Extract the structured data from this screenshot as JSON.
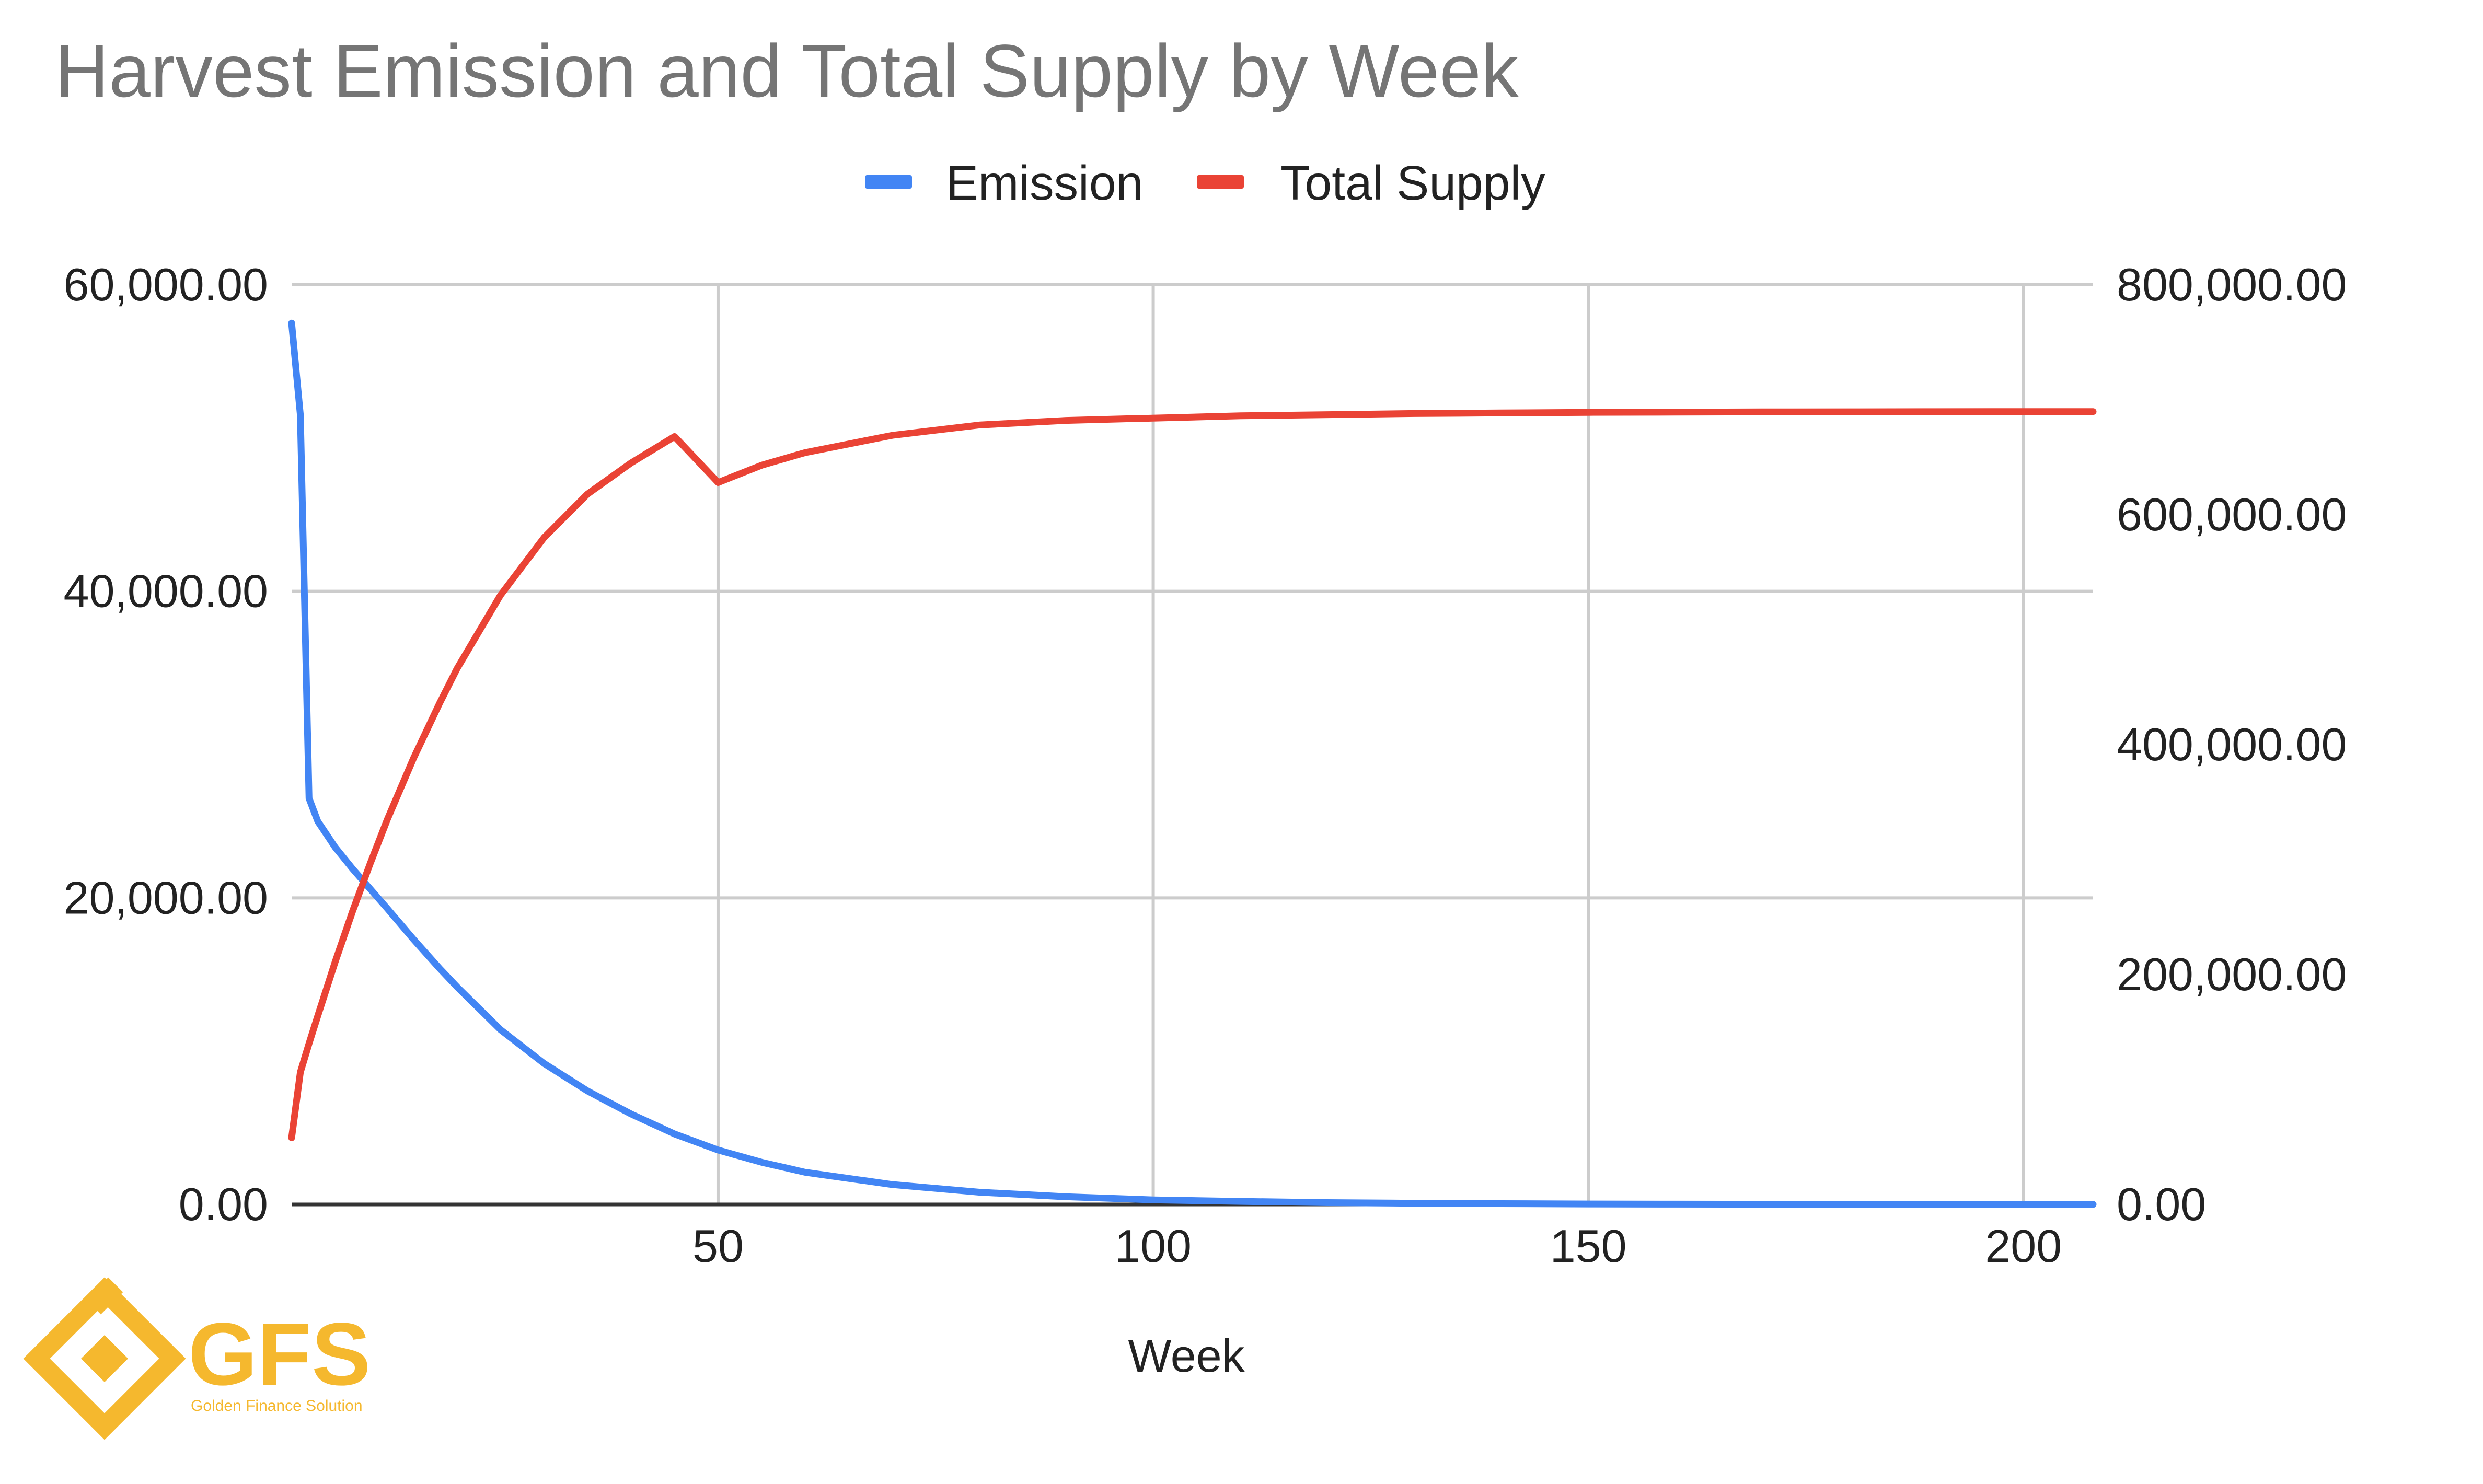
{
  "chart_data": {
    "type": "line",
    "title": "Harvest Emission and Total Supply by Week",
    "xlabel": "Week",
    "x_ticks": [
      "50",
      "100",
      "150",
      "200"
    ],
    "xlim": [
      1,
      208
    ],
    "y_left": {
      "ylim": [
        0,
        60000
      ],
      "ticks": [
        "0.00",
        "20,000.00",
        "40,000.00",
        "60,000.00"
      ]
    },
    "y_right": {
      "ylim": [
        0,
        800000
      ],
      "ticks": [
        "0.00",
        "200,000.00",
        "400,000.00",
        "600,000.00",
        "800,000.00"
      ]
    },
    "legend_position": "top",
    "grid": true,
    "series": [
      {
        "name": "Emission",
        "axis": "left",
        "color": "#4285f4",
        "x": [
          1,
          2,
          3,
          4,
          6,
          8,
          10,
          12,
          15,
          18,
          20,
          25,
          30,
          35,
          40,
          45,
          50,
          55,
          60,
          70,
          80,
          90,
          100,
          110,
          120,
          130,
          140,
          150,
          160,
          170,
          180,
          190,
          200,
          208
        ],
        "y": [
          57500,
          51500,
          26500,
          25000,
          23300,
          21900,
          20600,
          19300,
          17300,
          15400,
          14200,
          11400,
          9200,
          7400,
          5900,
          4600,
          3550,
          2750,
          2100,
          1300,
          800,
          500,
          300,
          200,
          120,
          80,
          50,
          30,
          20,
          12,
          8,
          5,
          3,
          2
        ]
      },
      {
        "name": "Total Supply",
        "axis": "right",
        "color": "#ea4335",
        "x": [
          1,
          2,
          3,
          4,
          6,
          8,
          10,
          12,
          15,
          18,
          20,
          25,
          30,
          35,
          40,
          45,
          50,
          55,
          60,
          70,
          80,
          90,
          100,
          110,
          120,
          130,
          140,
          150,
          160,
          170,
          180,
          190,
          200,
          208
        ],
        "y": [
          58000,
          115000,
          140000,
          164000,
          211000,
          255000,
          296000,
          335000,
          388000,
          436000,
          466000,
          530000,
          580000,
          618000,
          645000,
          668000,
          628000,
          643000,
          654000,
          669000,
          678000,
          682000,
          684000,
          686000,
          687000,
          688000,
          688500,
          689000,
          689200,
          689400,
          689500,
          689600,
          689700,
          689700
        ]
      }
    ]
  },
  "watermark": {
    "brand": "GFS",
    "tagline": "Golden Finance Solution",
    "color": "#f5b82e"
  }
}
